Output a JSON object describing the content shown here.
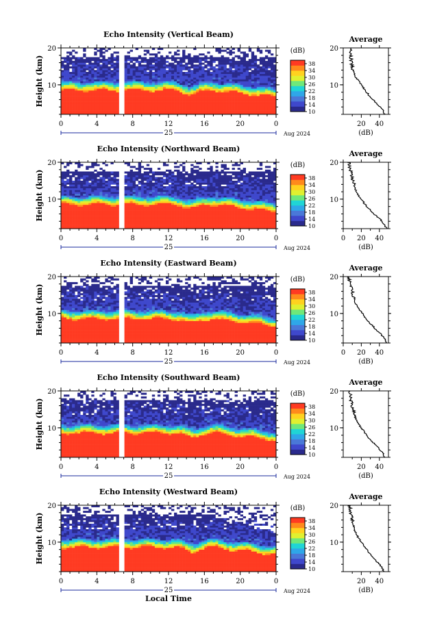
{
  "figure": {
    "x_axis_title": "Local Time",
    "date_label": "Aug 2024",
    "day_label": "25",
    "colorbar_unit": "(dB)",
    "avg_title": "Average",
    "avg_unit": "(dB)"
  },
  "colors": {
    "colormap": [
      "#2a2a8c",
      "#3f48cc",
      "#4a78d8",
      "#2fa7e8",
      "#20d5d5",
      "#6fe87a",
      "#e0f030",
      "#ffd21f",
      "#ff8a1c",
      "#ff3b22"
    ],
    "high_echo": "#ff3b22",
    "background": "#ffffff"
  },
  "chart_data": [
    {
      "type": "heatmap",
      "title": "Echo Intensity (Vertical Beam)",
      "ylabel": "Height (km)",
      "x_ticks": [
        "0",
        "4",
        "8",
        "12",
        "16",
        "20",
        "0"
      ],
      "y_ticks": [
        "20",
        "10"
      ],
      "xlim": [
        0,
        24
      ],
      "ylim": [
        2,
        20
      ],
      "colorbar_ticks": [
        "38",
        "34",
        "30",
        "26",
        "22",
        "18",
        "14",
        "10"
      ],
      "colorbar_range": [
        10,
        40
      ],
      "data_gap_hours": [
        6.5,
        7.2
      ],
      "avg_profile": {
        "x_ticks": [
          "20",
          "40"
        ],
        "y_ticks": [
          "20",
          "10"
        ],
        "xlim": [
          0,
          50
        ],
        "ylim": [
          2,
          20
        ],
        "height_km": [
          2,
          3,
          4,
          5,
          6,
          7,
          8,
          9,
          10,
          11,
          12,
          13,
          14,
          15,
          16,
          17,
          18,
          19,
          20
        ],
        "db": [
          46,
          44,
          41,
          37,
          33,
          29,
          26,
          23,
          20,
          17,
          14,
          12,
          11,
          10,
          9,
          9,
          8,
          8,
          7
        ]
      }
    },
    {
      "type": "heatmap",
      "title": "Echo Intensity (Northward Beam)",
      "ylabel": "Height (km)",
      "x_ticks": [
        "0",
        "4",
        "8",
        "12",
        "16",
        "20",
        "0"
      ],
      "y_ticks": [
        "20",
        "10"
      ],
      "xlim": [
        0,
        24
      ],
      "ylim": [
        2,
        20
      ],
      "colorbar_ticks": [
        "38",
        "34",
        "30",
        "26",
        "22",
        "18",
        "14",
        "10"
      ],
      "colorbar_range": [
        10,
        40
      ],
      "data_gap_hours": [
        6.5,
        7.2
      ],
      "avg_profile": {
        "x_ticks": [
          "0",
          "20",
          "40"
        ],
        "y_ticks": [
          "20",
          "10"
        ],
        "xlim": [
          0,
          50
        ],
        "ylim": [
          2,
          20
        ],
        "height_km": [
          2,
          3,
          4,
          5,
          6,
          7,
          8,
          9,
          10,
          11,
          12,
          13,
          14,
          15,
          16,
          17,
          18,
          19,
          20
        ],
        "db": [
          48,
          46,
          43,
          39,
          34,
          30,
          26,
          23,
          20,
          17,
          15,
          13,
          12,
          11,
          10,
          9,
          8,
          7,
          6
        ]
      }
    },
    {
      "type": "heatmap",
      "title": "Echo Intensity (Eastward Beam)",
      "ylabel": "Height (km)",
      "x_ticks": [
        "0",
        "4",
        "8",
        "12",
        "16",
        "20",
        "0"
      ],
      "y_ticks": [
        "20",
        "10"
      ],
      "xlim": [
        0,
        24
      ],
      "ylim": [
        2,
        20
      ],
      "colorbar_ticks": [
        "38",
        "34",
        "30",
        "26",
        "22",
        "18",
        "14",
        "10"
      ],
      "colorbar_range": [
        10,
        40
      ],
      "data_gap_hours": [
        6.5,
        7.2
      ],
      "avg_profile": {
        "x_ticks": [
          "0",
          "20",
          "40"
        ],
        "y_ticks": [
          "20",
          "10"
        ],
        "xlim": [
          0,
          50
        ],
        "ylim": [
          2,
          20
        ],
        "height_km": [
          2,
          3,
          4,
          5,
          6,
          7,
          8,
          9,
          10,
          11,
          12,
          13,
          14,
          15,
          16,
          17,
          18,
          19,
          20
        ],
        "db": [
          48,
          46,
          43,
          39,
          35,
          31,
          27,
          24,
          21,
          18,
          15,
          13,
          12,
          11,
          10,
          9,
          8,
          7,
          6
        ]
      }
    },
    {
      "type": "heatmap",
      "title": "Echo Intensity (Southward Beam)",
      "ylabel": "Height (km)",
      "x_ticks": [
        "0",
        "4",
        "8",
        "12",
        "16",
        "20",
        "0"
      ],
      "y_ticks": [
        "20",
        "10"
      ],
      "xlim": [
        0,
        24
      ],
      "ylim": [
        2,
        20
      ],
      "colorbar_ticks": [
        "38",
        "34",
        "30",
        "26",
        "22",
        "18",
        "14",
        "10"
      ],
      "colorbar_range": [
        10,
        40
      ],
      "data_gap_hours": [
        6.5,
        7.2
      ],
      "avg_profile": {
        "x_ticks": [
          "20",
          "40"
        ],
        "y_ticks": [
          "20",
          "10"
        ],
        "xlim": [
          0,
          50
        ],
        "ylim": [
          2,
          20
        ],
        "height_km": [
          2,
          3,
          4,
          5,
          6,
          7,
          8,
          9,
          10,
          11,
          12,
          13,
          14,
          15,
          16,
          17,
          18,
          19,
          20
        ],
        "db": [
          46,
          44,
          41,
          37,
          33,
          29,
          26,
          23,
          20,
          17,
          15,
          13,
          12,
          11,
          10,
          9,
          8,
          8,
          7
        ]
      }
    },
    {
      "type": "heatmap",
      "title": "Echo Intensity (Westward Beam)",
      "ylabel": "Height (km)",
      "x_ticks": [
        "0",
        "4",
        "8",
        "12",
        "16",
        "20",
        "0"
      ],
      "y_ticks": [
        "20",
        "10"
      ],
      "xlim": [
        0,
        24
      ],
      "ylim": [
        2,
        20
      ],
      "colorbar_ticks": [
        "38",
        "34",
        "30",
        "26",
        "22",
        "18",
        "14",
        "10"
      ],
      "colorbar_range": [
        10,
        40
      ],
      "data_gap_hours": [
        6.5,
        7.2
      ],
      "avg_profile": {
        "x_ticks": [
          "20",
          "40"
        ],
        "y_ticks": [
          "20",
          "10"
        ],
        "xlim": [
          0,
          50
        ],
        "ylim": [
          2,
          20
        ],
        "height_km": [
          2,
          3,
          4,
          5,
          6,
          7,
          8,
          9,
          10,
          11,
          12,
          13,
          14,
          15,
          16,
          17,
          18,
          19,
          20
        ],
        "db": [
          45,
          43,
          40,
          36,
          32,
          29,
          26,
          23,
          20,
          17,
          15,
          13,
          12,
          11,
          10,
          9,
          8,
          8,
          7
        ]
      }
    }
  ]
}
